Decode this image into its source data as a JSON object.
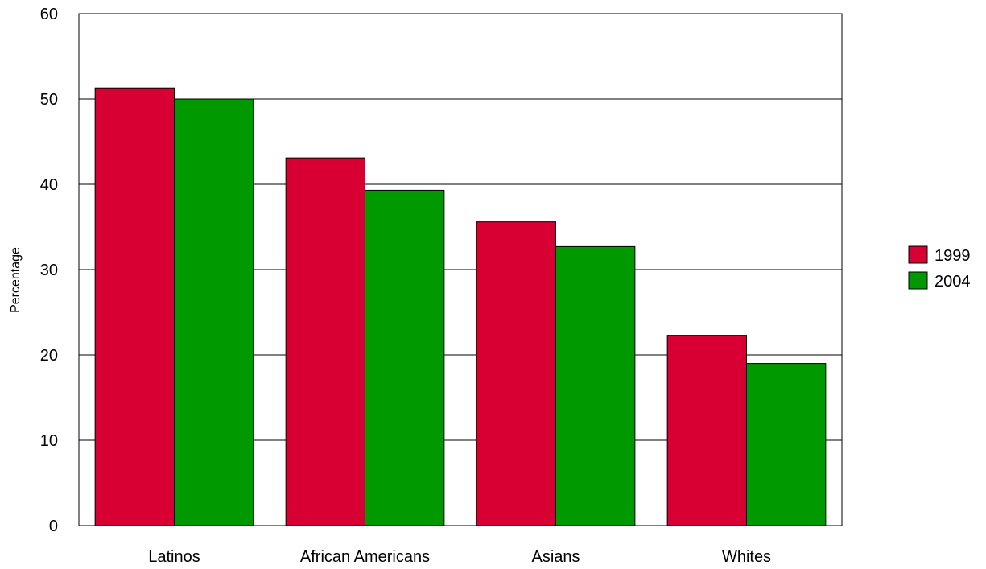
{
  "chart_data": {
    "type": "bar",
    "categories": [
      "Latinos",
      "African Americans",
      "Asians",
      "Whites"
    ],
    "series": [
      {
        "name": "1999",
        "color": "#d80032",
        "values": [
          51.3,
          43.1,
          35.6,
          22.3
        ]
      },
      {
        "name": "2004",
        "color": "#009a00",
        "values": [
          50.0,
          39.3,
          32.7,
          19.0
        ]
      }
    ],
    "title": "",
    "xlabel": "",
    "ylabel": "Percentage",
    "ylim": [
      0,
      60
    ],
    "yticks": [
      0,
      10,
      20,
      30,
      40,
      50,
      60
    ],
    "grid": true,
    "legend_position": "right"
  }
}
